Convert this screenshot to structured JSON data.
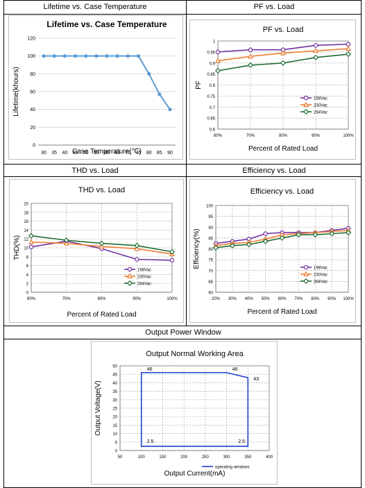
{
  "headers": {
    "lifetime": "Lifetime vs. Case Temperature",
    "pf": "PF vs. Load",
    "thd": "THD vs. Load",
    "efficiency": "Efficiency vs. Load",
    "output": "Output Power Window"
  },
  "chart_data": [
    {
      "id": "lifetime",
      "type": "line",
      "title": "Lifetime vs. Case Temperature",
      "xlabel": "Case Temperature(℃)",
      "ylabel": "Lifetime(khours)",
      "x": [
        30,
        35,
        40,
        45,
        50,
        55,
        60,
        65,
        70,
        75,
        80,
        85,
        90
      ],
      "xticks": [
        "30",
        "35",
        "40",
        "45",
        "50",
        "55",
        "60",
        "65",
        "70",
        "75",
        "80",
        "85",
        "90"
      ],
      "ylim": [
        0,
        120
      ],
      "yticks": [
        0,
        20,
        40,
        60,
        80,
        100,
        120
      ],
      "grid": "horizontal",
      "series": [
        {
          "values": [
            100,
            100,
            100,
            100,
            100,
            100,
            100,
            100,
            100,
            100,
            80,
            57,
            40
          ],
          "color": "#5b9bd5"
        }
      ]
    },
    {
      "id": "pf",
      "type": "line",
      "title": "PF vs. Load",
      "xlabel": "Percent of Rated Load",
      "ylabel": "PF",
      "categories": [
        "60%",
        "70%",
        "80%",
        "90%",
        "100%"
      ],
      "ylim": [
        0.6,
        1.0
      ],
      "yticks": [
        "0.6",
        "0.65",
        "0.7",
        "0.75",
        "0.8",
        "0.85",
        "0.9",
        "0.95",
        "1"
      ],
      "grid": "dashed",
      "legend": "bottom-right",
      "series": [
        {
          "name": "198Vac",
          "values": [
            0.95,
            0.96,
            0.96,
            0.98,
            0.985
          ],
          "color": "#7030a0",
          "marker": "circle"
        },
        {
          "name": "230Vac",
          "values": [
            0.91,
            0.93,
            0.945,
            0.955,
            0.965
          ],
          "color": "#ed7d31",
          "marker": "triangle"
        },
        {
          "name": "264Vac",
          "values": [
            0.865,
            0.89,
            0.9,
            0.925,
            0.94
          ],
          "color": "#1e6b30",
          "marker": "diamond"
        }
      ]
    },
    {
      "id": "thd",
      "type": "line",
      "title": "THD vs. Load",
      "xlabel": "Percent of Rated Load",
      "ylabel": "THD(%)",
      "categories": [
        "60%",
        "70%",
        "80%",
        "90%",
        "100%"
      ],
      "ylim": [
        0,
        20
      ],
      "yticks": [
        "0",
        "2",
        "4",
        "6",
        "8",
        "10",
        "12",
        "14",
        "16",
        "18",
        "20"
      ],
      "grid": "dashed",
      "legend": "bottom-right",
      "series": [
        {
          "name": "198Vac",
          "values": [
            10.2,
            11.5,
            9.8,
            7.4,
            7.2
          ],
          "color": "#7030a0",
          "marker": "circle"
        },
        {
          "name": "230Vac",
          "values": [
            11.3,
            11.0,
            10.3,
            9.8,
            8.6
          ],
          "color": "#ed7d31",
          "marker": "triangle"
        },
        {
          "name": "264Vac",
          "values": [
            12.7,
            11.7,
            11.0,
            10.5,
            9.1
          ],
          "color": "#1e6b30",
          "marker": "diamond"
        }
      ]
    },
    {
      "id": "efficiency",
      "type": "line",
      "title": "Efficiency vs. Load",
      "xlabel": "Percent of Rated Load",
      "ylabel": "Efficiency(%)",
      "categories": [
        "20%",
        "30%",
        "40%",
        "50%",
        "60%",
        "70%",
        "80%",
        "90%",
        "100%"
      ],
      "ylim": [
        60,
        100
      ],
      "yticks": [
        "60",
        "65",
        "70",
        "75",
        "80",
        "85",
        "90",
        "95",
        "100"
      ],
      "grid": "dashed",
      "legend": "bottom-right",
      "series": [
        {
          "name": "198Vac",
          "values": [
            82.5,
            83.5,
            84.5,
            87,
            87.5,
            87.5,
            87.5,
            88.5,
            89.5
          ],
          "color": "#7030a0",
          "marker": "circle"
        },
        {
          "name": "230Vac",
          "values": [
            81.5,
            82.5,
            83,
            84.5,
            86.5,
            87,
            87.5,
            88,
            88.5
          ],
          "color": "#ed7d31",
          "marker": "triangle"
        },
        {
          "name": "264Vac",
          "values": [
            80.5,
            81.5,
            82,
            83.5,
            85,
            86.5,
            86.5,
            87,
            87.5
          ],
          "color": "#1e6b30",
          "marker": "diamond"
        }
      ]
    },
    {
      "id": "output",
      "type": "line",
      "title": "Output Normal Working Area",
      "xlabel": "Output Current(mA)",
      "ylabel": "Output Voltage(V)",
      "xlim": [
        50,
        400
      ],
      "xticks": [
        "50",
        "100",
        "150",
        "200",
        "250",
        "300",
        "350",
        "400"
      ],
      "ylim": [
        0,
        50
      ],
      "yticks": [
        "0",
        "5",
        "10",
        "15",
        "20",
        "25",
        "30",
        "35",
        "40",
        "45",
        "50"
      ],
      "grid": "dashed",
      "legend": "bottom-right",
      "series": [
        {
          "name": "operating windows",
          "color": "#1f3fd0",
          "x": [
            100,
            300,
            350,
            350,
            100,
            100
          ],
          "y": [
            46,
            46,
            43,
            2.5,
            2.5,
            46
          ]
        }
      ],
      "annotations": [
        {
          "text": "46",
          "x": 100,
          "y": 46
        },
        {
          "text": "46",
          "x": 300,
          "y": 46
        },
        {
          "text": "43",
          "x": 350,
          "y": 43
        },
        {
          "text": "2.5",
          "x": 100,
          "y": 2.5
        },
        {
          "text": "2.5",
          "x": 350,
          "y": 2.5
        }
      ]
    }
  ]
}
